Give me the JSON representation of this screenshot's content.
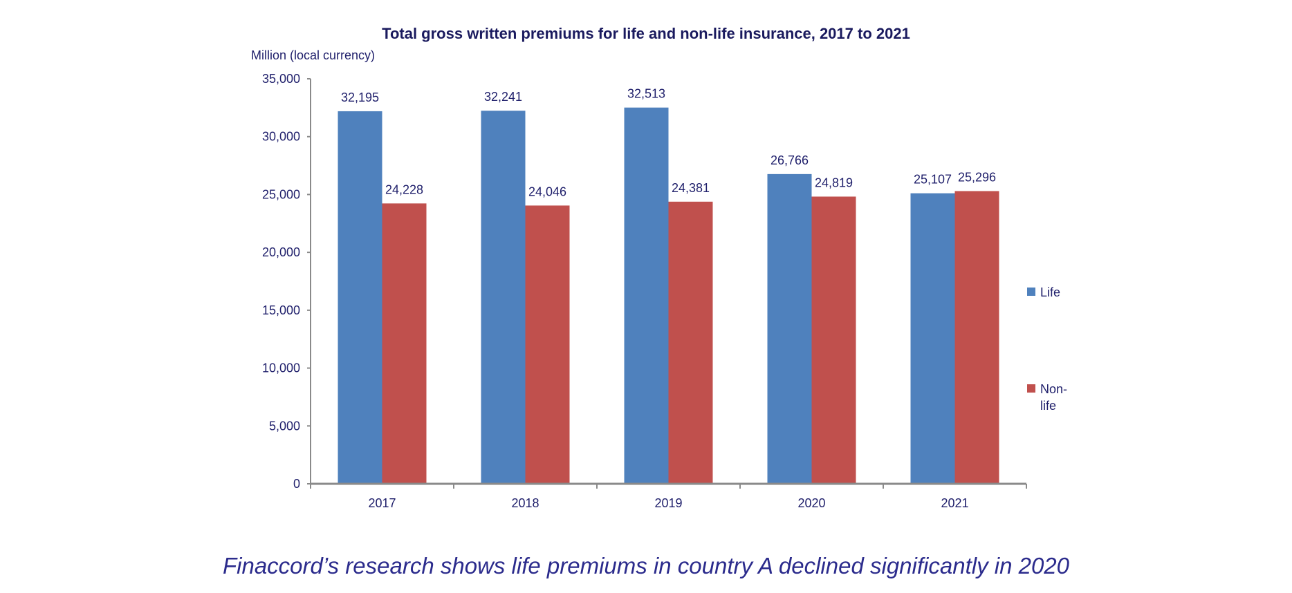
{
  "chart_data": {
    "type": "bar",
    "title": "Total gross written premiums for life and non-life insurance, 2017 to 2021",
    "ylabel": "Million (local currency)",
    "xlabel": "",
    "categories": [
      "2017",
      "2018",
      "2019",
      "2020",
      "2021"
    ],
    "series": [
      {
        "name": "Life",
        "legend_lines": [
          "Life"
        ],
        "color": "#4f81bd",
        "values": [
          32195,
          32241,
          32513,
          26766,
          25107
        ],
        "labels": [
          "32,195",
          "32,241",
          "32,513",
          "26,766",
          "25,107"
        ]
      },
      {
        "name": "Non-life",
        "legend_lines": [
          "Non-",
          "life"
        ],
        "color": "#c0504d",
        "values": [
          24228,
          24046,
          24381,
          24819,
          25296
        ],
        "labels": [
          "24,228",
          "24,046",
          "24,381",
          "24,819",
          "25,296"
        ]
      }
    ],
    "ylim": [
      0,
      35000
    ],
    "yticks": [
      0,
      5000,
      10000,
      15000,
      20000,
      25000,
      30000,
      35000
    ],
    "ytick_labels": [
      "0",
      "5,000",
      "10,000",
      "15,000",
      "20,000",
      "25,000",
      "30,000",
      "35,000"
    ],
    "grid": false,
    "legend_position": "right"
  },
  "caption": "Finaccord’s research shows life premiums in country A declined significantly in 2020"
}
